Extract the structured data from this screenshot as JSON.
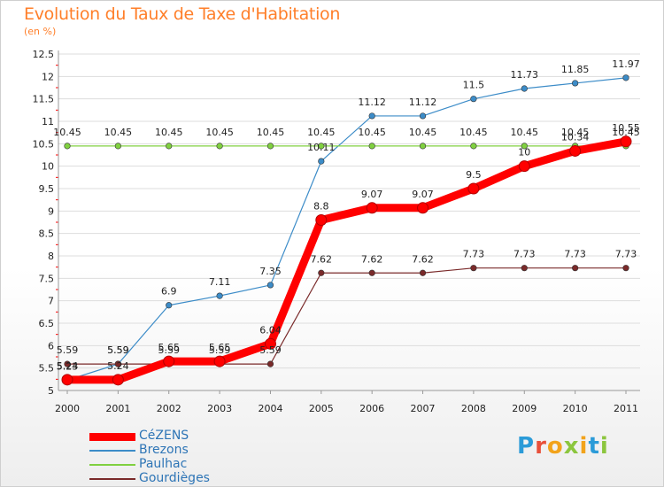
{
  "header": {
    "title": "Evolution du Taux de Taxe d'Habitation",
    "subtitle": "(en %)"
  },
  "brand": {
    "letters": [
      "P",
      "r",
      "o",
      "x",
      "i",
      "t",
      "i"
    ],
    "colors": [
      "#2b9bd8",
      "#e8503a",
      "#f2a31b",
      "#8cc63e",
      "#f2a31b",
      "#2b9bd8",
      "#8cc63e"
    ]
  },
  "chart_data": {
    "type": "line",
    "title": "Evolution du Taux de Taxe d'Habitation",
    "subtitle": "(en %)",
    "xlabel": "",
    "ylabel": "",
    "x": [
      "2000",
      "2001",
      "2002",
      "2003",
      "2004",
      "2005",
      "2006",
      "2007",
      "2008",
      "2009",
      "2010",
      "2011"
    ],
    "ylim": [
      5,
      12.5
    ],
    "yticks": [
      5,
      5.5,
      6,
      6.5,
      7,
      7.5,
      8,
      8.5,
      9,
      9.5,
      10,
      10.5,
      11,
      11.5,
      12,
      12.5
    ],
    "ytick_labels": [
      "5",
      "5.5",
      "6",
      "6.5",
      "7",
      "7.5",
      "8",
      "8.5",
      "9",
      "9.5",
      "10",
      "10.5",
      "11",
      "11.5",
      "12",
      "12.5"
    ],
    "grid": "horizontal",
    "legend_position": "bottom-left",
    "series": [
      {
        "name": "CéZENS",
        "color": "#ff0000",
        "emphasis": "thick",
        "values": [
          5.24,
          5.24,
          5.65,
          5.65,
          6.04,
          8.8,
          9.07,
          9.07,
          9.5,
          10,
          10.34,
          10.55
        ],
        "labels": [
          "5.24",
          "5.24",
          "5.65",
          "5.65",
          "6.04",
          "8.8",
          "9.07",
          "9.07",
          "9.5",
          "10",
          "10.34",
          "10.55"
        ]
      },
      {
        "name": "Brezons",
        "color": "#3c8cc8",
        "emphasis": "thin",
        "values": [
          5.23,
          5.59,
          6.9,
          7.11,
          7.35,
          10.11,
          11.12,
          11.12,
          11.5,
          11.73,
          11.85,
          11.97
        ],
        "labels": [
          "5.23",
          "5.59",
          "6.9",
          "7.11",
          "7.35",
          "10.11",
          "11.12",
          "11.12",
          "11.5",
          "11.73",
          "11.85",
          "11.97"
        ]
      },
      {
        "name": "Paulhac",
        "color": "#80d040",
        "emphasis": "thin",
        "values": [
          10.45,
          10.45,
          10.45,
          10.45,
          10.45,
          10.45,
          10.45,
          10.45,
          10.45,
          10.45,
          10.45,
          10.45
        ],
        "labels": [
          "10.45",
          "10.45",
          "10.45",
          "10.45",
          "10.45",
          "10.45",
          "10.45",
          "10.45",
          "10.45",
          "10.45",
          "10.45",
          "10.45"
        ]
      },
      {
        "name": "Gourdièges",
        "color": "#7a2a2a",
        "emphasis": "thin",
        "values": [
          5.59,
          5.59,
          5.59,
          5.59,
          5.59,
          7.62,
          7.62,
          7.62,
          7.73,
          7.73,
          7.73,
          7.73
        ],
        "labels": [
          "5.59",
          "5.59",
          "5.59",
          "5.59",
          "5.59",
          "7.62",
          "7.62",
          "7.62",
          "7.73",
          "7.73",
          "7.73",
          "7.73"
        ]
      }
    ]
  }
}
